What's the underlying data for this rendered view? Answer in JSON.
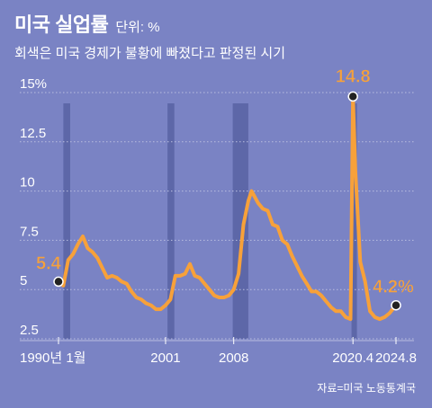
{
  "header": {
    "title": "미국 실업률",
    "unit": "단위: %",
    "subtitle": "회색은 미국 경제가 불황에 빠졌다고 판정된 시기"
  },
  "source": "자료=미국 노동통계국",
  "colors": {
    "background": "#7a83c4",
    "line": "#f7a13a",
    "recession": "#5d67a8",
    "grid": "#b9bedf",
    "callout": "#f7a13a"
  },
  "chart_data": {
    "type": "line",
    "title": "미국 실업률",
    "ylabel": "",
    "xlabel": "",
    "ylim": [
      2.5,
      15
    ],
    "x_range": [
      1990.0,
      2024.67
    ],
    "y_ticks": [
      {
        "value": 15,
        "label": "15%"
      },
      {
        "value": 12.5,
        "label": "12.5"
      },
      {
        "value": 10,
        "label": "10"
      },
      {
        "value": 7.5,
        "label": "7.5"
      },
      {
        "value": 5,
        "label": "5"
      },
      {
        "value": 2.5,
        "label": "2.5"
      }
    ],
    "x_ticks": [
      {
        "value": 1990.0,
        "label": "1990년 1월"
      },
      {
        "value": 2001.0,
        "label": "2001"
      },
      {
        "value": 2008.0,
        "label": "2008"
      },
      {
        "value": 2020.25,
        "label": "2020.4"
      },
      {
        "value": 2024.67,
        "label": "2024.8"
      }
    ],
    "recessions": [
      {
        "start": 1990.5,
        "end": 1991.2
      },
      {
        "start": 2001.2,
        "end": 2001.9
      },
      {
        "start": 2007.9,
        "end": 2009.5
      },
      {
        "start": 2020.1,
        "end": 2020.35
      }
    ],
    "series": [
      {
        "name": "",
        "x": [
          1990.0,
          1990.5,
          1991.0,
          1991.5,
          1992.0,
          1992.5,
          1993.0,
          1993.5,
          1994.0,
          1994.5,
          1995.0,
          1995.5,
          1996.0,
          1996.5,
          1997.0,
          1997.5,
          1998.0,
          1998.5,
          1999.0,
          1999.5,
          2000.0,
          2000.5,
          2001.0,
          2001.5,
          2002.0,
          2002.5,
          2003.0,
          2003.5,
          2004.0,
          2004.5,
          2005.0,
          2005.5,
          2006.0,
          2006.5,
          2007.0,
          2007.5,
          2008.0,
          2008.5,
          2009.0,
          2009.5,
          2009.83,
          2010.5,
          2011.0,
          2011.5,
          2012.0,
          2012.5,
          2013.0,
          2013.5,
          2014.0,
          2014.5,
          2015.0,
          2015.5,
          2016.0,
          2016.5,
          2017.0,
          2017.5,
          2018.0,
          2018.5,
          2019.0,
          2019.5,
          2020.0,
          2020.25,
          2020.5,
          2021.0,
          2021.5,
          2022.0,
          2022.5,
          2023.0,
          2023.5,
          2024.0,
          2024.67
        ],
        "y": [
          5.4,
          5.2,
          6.5,
          6.8,
          7.3,
          7.7,
          7.1,
          6.9,
          6.6,
          6.1,
          5.6,
          5.7,
          5.6,
          5.4,
          5.3,
          4.9,
          4.6,
          4.5,
          4.3,
          4.2,
          4.0,
          4.0,
          4.2,
          4.5,
          5.7,
          5.7,
          5.8,
          6.3,
          5.7,
          5.6,
          5.3,
          5.0,
          4.7,
          4.6,
          4.6,
          4.7,
          5.0,
          5.8,
          8.3,
          9.5,
          10.0,
          9.4,
          9.1,
          9.0,
          8.3,
          8.2,
          7.5,
          7.3,
          6.7,
          6.2,
          5.7,
          5.3,
          4.9,
          4.9,
          4.7,
          4.4,
          4.1,
          3.9,
          3.9,
          3.6,
          3.5,
          14.8,
          11.0,
          6.4,
          5.4,
          3.9,
          3.6,
          3.5,
          3.6,
          3.8,
          4.2
        ]
      }
    ],
    "callouts": [
      {
        "x": 1990.0,
        "y": 5.4,
        "label": "5.4"
      },
      {
        "x": 2020.25,
        "y": 14.8,
        "label": "14.8"
      },
      {
        "x": 2024.67,
        "y": 4.2,
        "label": "4.2%"
      }
    ]
  }
}
